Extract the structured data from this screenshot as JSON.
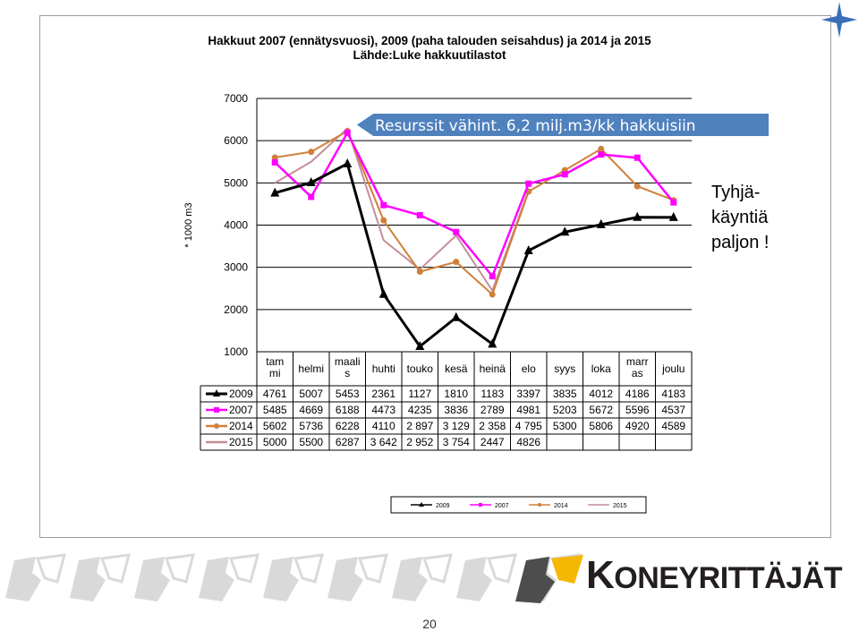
{
  "title_line1": "Hakkuut 2007 (ennätysvuosi), 2009 (paha talouden seisahdus) ja 2014 ja 2015",
  "title_line2": "Lähde:Luke hakkuutilastot",
  "callout": "Resurssit vähint. 6,2 milj.m3/kk hakkuisiin",
  "side_note": "Tyhjä-\nkäyntiä\npaljon !",
  "page_number": "20",
  "logo": {
    "first_letter": "K",
    "rest": "ONEYRITTÄJÄT",
    "brand_color": "#f5b800",
    "dark_color": "#4d4d4d",
    "light_color": "#d9d9d9"
  },
  "colors": {
    "s2009": "#000000",
    "s2007": "#ff00ff",
    "s2014": "#d07f3a",
    "s2015": "#c48f98",
    "callout_bg": "#4f81bd"
  },
  "chart_data": {
    "type": "line",
    "ylabel": "* 1000 m3",
    "ylim": [
      1000,
      7000
    ],
    "yticks": [
      1000,
      2000,
      3000,
      4000,
      5000,
      6000,
      7000
    ],
    "grid": true,
    "categories": [
      "tam\nmi",
      "helmi",
      "maali\ns",
      "huhti",
      "touko",
      "kesä",
      "heinä",
      "elo",
      "syys",
      "loka",
      "marr\nas",
      "joulu"
    ],
    "series": [
      {
        "name": "2009",
        "values": [
          4761,
          5007,
          5453,
          2361,
          1127,
          1810,
          1183,
          3397,
          3835,
          4012,
          4186,
          4183
        ],
        "labels": [
          "4761",
          "5007",
          "5453",
          "2361",
          "1127",
          "1810",
          "1183",
          "3397",
          "3835",
          "4012",
          "4186",
          "4183"
        ]
      },
      {
        "name": "2007",
        "values": [
          5485,
          4669,
          6188,
          4473,
          4235,
          3836,
          2789,
          4981,
          5203,
          5672,
          5596,
          4537
        ],
        "labels": [
          "5485",
          "4669",
          "6188",
          "4473",
          "4235",
          "3836",
          "2789",
          "4981",
          "5203",
          "5672",
          "5596",
          "4537"
        ]
      },
      {
        "name": "2014",
        "values": [
          5602,
          5736,
          6228,
          4110,
          2897,
          3129,
          2358,
          4795,
          5300,
          5806,
          4920,
          4589
        ],
        "labels": [
          "5602",
          "5736",
          "6228",
          "4110",
          "2 897",
          "3 129",
          "2 358",
          "4 795",
          "5300",
          "5806",
          "4920",
          "4589"
        ]
      },
      {
        "name": "2015",
        "values": [
          5000,
          5500,
          6287,
          3642,
          2952,
          3754,
          2447,
          4826,
          null,
          null,
          null,
          null
        ],
        "labels": [
          "5000",
          "5500",
          "6287",
          "3 642",
          "2 952",
          "3 754",
          "2447",
          "4826",
          "",
          "",
          "",
          ""
        ]
      }
    ],
    "legend": "bottom"
  }
}
